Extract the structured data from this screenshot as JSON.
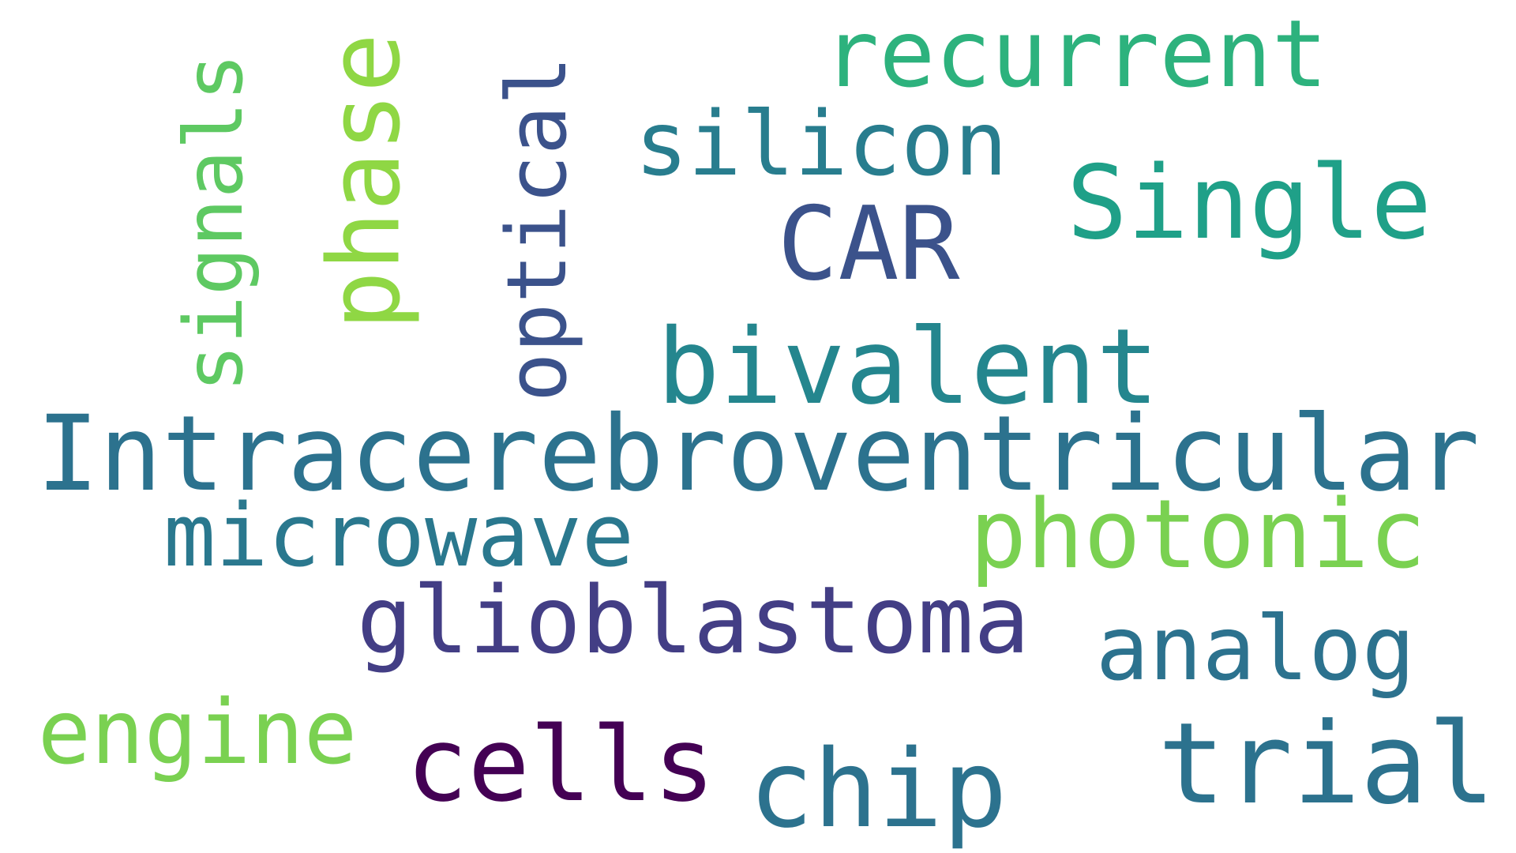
{
  "words": [
    {
      "text": "Intracerebroventricular",
      "color": "#2c728e",
      "rotated": false
    },
    {
      "text": "glioblastoma",
      "color": "#433e85",
      "rotated": false
    },
    {
      "text": "recurrent",
      "color": "#2db27d",
      "rotated": false
    },
    {
      "text": "silicon",
      "color": "#287d8e",
      "rotated": false
    },
    {
      "text": "Single",
      "color": "#1fa088",
      "rotated": false
    },
    {
      "text": "CAR",
      "color": "#3b528b",
      "rotated": false
    },
    {
      "text": "bivalent",
      "color": "#24868e",
      "rotated": false
    },
    {
      "text": "microwave",
      "color": "#2a788e",
      "rotated": false
    },
    {
      "text": "photonic",
      "color": "#7ad151",
      "rotated": false
    },
    {
      "text": "analog",
      "color": "#2c728e",
      "rotated": false
    },
    {
      "text": "engine",
      "color": "#7ad151",
      "rotated": false
    },
    {
      "text": "cells",
      "color": "#440154",
      "rotated": false
    },
    {
      "text": "chip",
      "color": "#2c728e",
      "rotated": false
    },
    {
      "text": "trial",
      "color": "#2c728e",
      "rotated": false
    },
    {
      "text": "signals",
      "color": "#5ec962",
      "rotated": true
    },
    {
      "text": "phase",
      "color": "#8fd744",
      "rotated": true
    },
    {
      "text": "optical",
      "color": "#3b528b",
      "rotated": true
    }
  ]
}
